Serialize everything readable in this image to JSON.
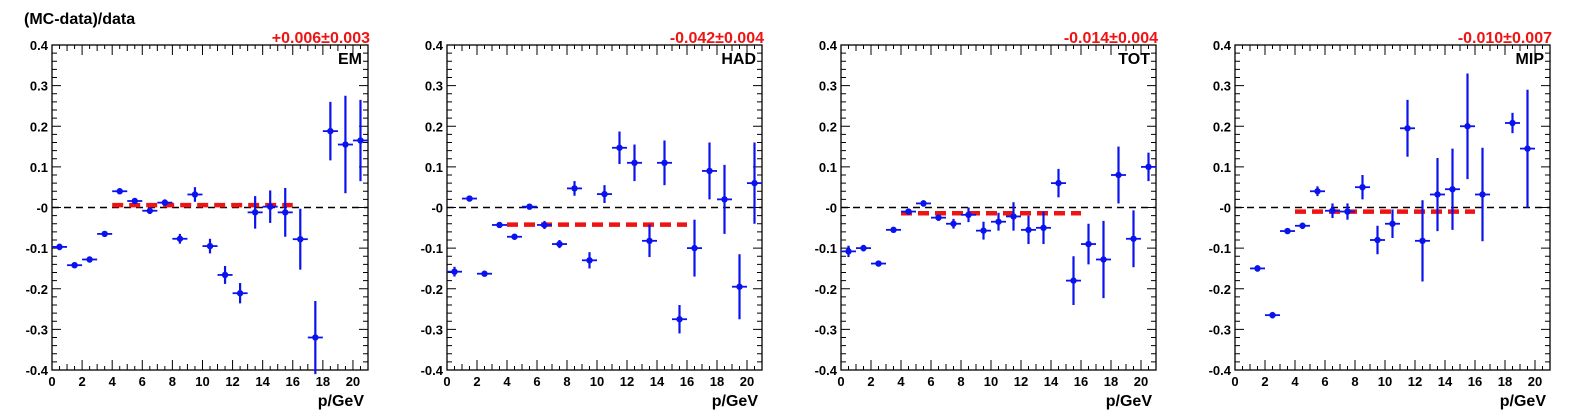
{
  "figure": {
    "ylabel": "(MC-data)/data",
    "xlabel": "p/GeV"
  },
  "chart_data": [
    {
      "type": "scatter",
      "panel_label": "EM",
      "annotation": "+0.006±0.003",
      "xlim": [
        0,
        21
      ],
      "ylim": [
        -0.4,
        0.4
      ],
      "xticks": [
        "0",
        "2",
        "4",
        "6",
        "8",
        "10",
        "12",
        "14",
        "16",
        "18",
        "20"
      ],
      "yticks": [
        "-0.4",
        "-0.3",
        "-0.2",
        "-0.1",
        "-0",
        "0.1",
        "0.2",
        "0.3",
        "0.4"
      ],
      "grid": false,
      "reference_line": 0,
      "fit": {
        "value": 0.006,
        "x_range": [
          4,
          16
        ]
      },
      "points": [
        {
          "x": 0.5,
          "y": -0.097,
          "err": 0.008
        },
        {
          "x": 1.5,
          "y": -0.142,
          "err": 0.007
        },
        {
          "x": 2.5,
          "y": -0.128,
          "err": 0.007
        },
        {
          "x": 3.5,
          "y": -0.065,
          "err": 0.005
        },
        {
          "x": 4.5,
          "y": 0.04,
          "err": 0.006
        },
        {
          "x": 5.5,
          "y": 0.016,
          "err": 0.007
        },
        {
          "x": 6.5,
          "y": -0.008,
          "err": 0.008
        },
        {
          "x": 7.5,
          "y": 0.012,
          "err": 0.008
        },
        {
          "x": 8.5,
          "y": -0.077,
          "err": 0.012
        },
        {
          "x": 9.5,
          "y": 0.032,
          "err": 0.018
        },
        {
          "x": 10.5,
          "y": -0.095,
          "err": 0.018
        },
        {
          "x": 11.5,
          "y": -0.166,
          "err": 0.022
        },
        {
          "x": 12.5,
          "y": -0.211,
          "err": 0.025
        },
        {
          "x": 13.5,
          "y": -0.012,
          "err": 0.04
        },
        {
          "x": 14.5,
          "y": 0.002,
          "err": 0.04
        },
        {
          "x": 15.5,
          "y": -0.012,
          "err": 0.06
        },
        {
          "x": 16.5,
          "y": -0.078,
          "err": 0.075
        },
        {
          "x": 17.5,
          "y": -0.32,
          "err": 0.09
        },
        {
          "x": 18.5,
          "y": 0.188,
          "err": 0.072
        },
        {
          "x": 19.5,
          "y": 0.155,
          "err": 0.12
        },
        {
          "x": 20.5,
          "y": 0.165,
          "err": 0.1
        }
      ]
    },
    {
      "type": "scatter",
      "panel_label": "HAD",
      "annotation": "-0.042±0.004",
      "xlim": [
        0,
        21
      ],
      "ylim": [
        -0.4,
        0.4
      ],
      "xticks": [
        "0",
        "2",
        "4",
        "6",
        "8",
        "10",
        "12",
        "14",
        "16",
        "18",
        "20"
      ],
      "yticks": [
        "-0.4",
        "-0.3",
        "-0.2",
        "-0.1",
        "-0",
        "0.1",
        "0.2",
        "0.3",
        "0.4"
      ],
      "grid": false,
      "reference_line": 0,
      "fit": {
        "value": -0.042,
        "x_range": [
          4,
          16
        ]
      },
      "points": [
        {
          "x": 0.5,
          "y": -0.158,
          "err": 0.012
        },
        {
          "x": 1.5,
          "y": 0.022,
          "err": 0.006
        },
        {
          "x": 2.5,
          "y": -0.163,
          "err": 0.006
        },
        {
          "x": 3.5,
          "y": -0.043,
          "err": 0.005
        },
        {
          "x": 4.5,
          "y": -0.072,
          "err": 0.006
        },
        {
          "x": 5.5,
          "y": 0.002,
          "err": 0.006
        },
        {
          "x": 6.5,
          "y": -0.043,
          "err": 0.01
        },
        {
          "x": 7.5,
          "y": -0.09,
          "err": 0.01
        },
        {
          "x": 8.5,
          "y": 0.047,
          "err": 0.018
        },
        {
          "x": 9.5,
          "y": -0.13,
          "err": 0.02
        },
        {
          "x": 10.5,
          "y": 0.033,
          "err": 0.022
        },
        {
          "x": 11.5,
          "y": 0.147,
          "err": 0.04
        },
        {
          "x": 12.5,
          "y": 0.11,
          "err": 0.045
        },
        {
          "x": 13.5,
          "y": -0.082,
          "err": 0.04
        },
        {
          "x": 14.5,
          "y": 0.11,
          "err": 0.055
        },
        {
          "x": 15.5,
          "y": -0.275,
          "err": 0.035
        },
        {
          "x": 16.5,
          "y": -0.1,
          "err": 0.07
        },
        {
          "x": 17.5,
          "y": 0.09,
          "err": 0.07
        },
        {
          "x": 18.5,
          "y": 0.02,
          "err": 0.085
        },
        {
          "x": 19.5,
          "y": -0.195,
          "err": 0.08
        },
        {
          "x": 20.5,
          "y": 0.06,
          "err": 0.1
        }
      ]
    },
    {
      "type": "scatter",
      "panel_label": "TOT",
      "annotation": "-0.014±0.004",
      "xlim": [
        0,
        21
      ],
      "ylim": [
        -0.4,
        0.4
      ],
      "xticks": [
        "0",
        "2",
        "4",
        "6",
        "8",
        "10",
        "12",
        "14",
        "16",
        "18",
        "20"
      ],
      "yticks": [
        "-0.4",
        "-0.3",
        "-0.2",
        "-0.1",
        "-0",
        "0.1",
        "0.2",
        "0.3",
        "0.4"
      ],
      "grid": false,
      "reference_line": 0,
      "fit": {
        "value": -0.014,
        "x_range": [
          4,
          16
        ]
      },
      "points": [
        {
          "x": 0.5,
          "y": -0.108,
          "err": 0.014
        },
        {
          "x": 1.5,
          "y": -0.1,
          "err": 0.008
        },
        {
          "x": 2.5,
          "y": -0.138,
          "err": 0.006
        },
        {
          "x": 3.5,
          "y": -0.055,
          "err": 0.005
        },
        {
          "x": 4.5,
          "y": -0.01,
          "err": 0.005
        },
        {
          "x": 5.5,
          "y": 0.01,
          "err": 0.008
        },
        {
          "x": 6.5,
          "y": -0.025,
          "err": 0.008
        },
        {
          "x": 7.5,
          "y": -0.04,
          "err": 0.012
        },
        {
          "x": 8.5,
          "y": -0.018,
          "err": 0.018
        },
        {
          "x": 9.5,
          "y": -0.057,
          "err": 0.022
        },
        {
          "x": 10.5,
          "y": -0.035,
          "err": 0.022
        },
        {
          "x": 11.5,
          "y": -0.022,
          "err": 0.035
        },
        {
          "x": 12.5,
          "y": -0.055,
          "err": 0.035
        },
        {
          "x": 13.5,
          "y": -0.05,
          "err": 0.04
        },
        {
          "x": 14.5,
          "y": 0.06,
          "err": 0.035
        },
        {
          "x": 15.5,
          "y": -0.18,
          "err": 0.06
        },
        {
          "x": 16.5,
          "y": -0.09,
          "err": 0.05
        },
        {
          "x": 17.5,
          "y": -0.128,
          "err": 0.095
        },
        {
          "x": 18.5,
          "y": 0.08,
          "err": 0.07
        },
        {
          "x": 19.5,
          "y": -0.077,
          "err": 0.07
        },
        {
          "x": 20.5,
          "y": 0.1,
          "err": 0.035
        }
      ]
    },
    {
      "type": "scatter",
      "panel_label": "MIP",
      "annotation": "-0.010±0.007",
      "xlim": [
        0,
        21
      ],
      "ylim": [
        -0.4,
        0.4
      ],
      "xticks": [
        "0",
        "2",
        "4",
        "6",
        "8",
        "10",
        "12",
        "14",
        "16",
        "18",
        "20"
      ],
      "yticks": [
        "-0.4",
        "-0.3",
        "-0.2",
        "-0.1",
        "-0",
        "0.1",
        "0.2",
        "0.3",
        "0.4"
      ],
      "grid": false,
      "reference_line": 0,
      "fit": {
        "value": -0.01,
        "x_range": [
          4,
          16
        ]
      },
      "points": [
        {
          "x": 1.5,
          "y": -0.15,
          "err": 0.008
        },
        {
          "x": 2.5,
          "y": -0.265,
          "err": 0.008
        },
        {
          "x": 3.5,
          "y": -0.058,
          "err": 0.006
        },
        {
          "x": 4.5,
          "y": -0.045,
          "err": 0.008
        },
        {
          "x": 5.5,
          "y": 0.04,
          "err": 0.012
        },
        {
          "x": 6.5,
          "y": -0.008,
          "err": 0.018
        },
        {
          "x": 7.5,
          "y": -0.01,
          "err": 0.02
        },
        {
          "x": 8.5,
          "y": 0.05,
          "err": 0.03
        },
        {
          "x": 9.5,
          "y": -0.08,
          "err": 0.035
        },
        {
          "x": 10.5,
          "y": -0.04,
          "err": 0.035
        },
        {
          "x": 11.5,
          "y": 0.195,
          "err": 0.07
        },
        {
          "x": 12.5,
          "y": -0.082,
          "err": 0.1
        },
        {
          "x": 13.5,
          "y": 0.032,
          "err": 0.09
        },
        {
          "x": 14.5,
          "y": 0.045,
          "err": 0.1
        },
        {
          "x": 15.5,
          "y": 0.2,
          "err": 0.13
        },
        {
          "x": 16.5,
          "y": 0.032,
          "err": 0.115
        },
        {
          "x": 18.5,
          "y": 0.208,
          "err": 0.025
        },
        {
          "x": 19.5,
          "y": 0.145,
          "err": 0.145
        }
      ]
    }
  ]
}
